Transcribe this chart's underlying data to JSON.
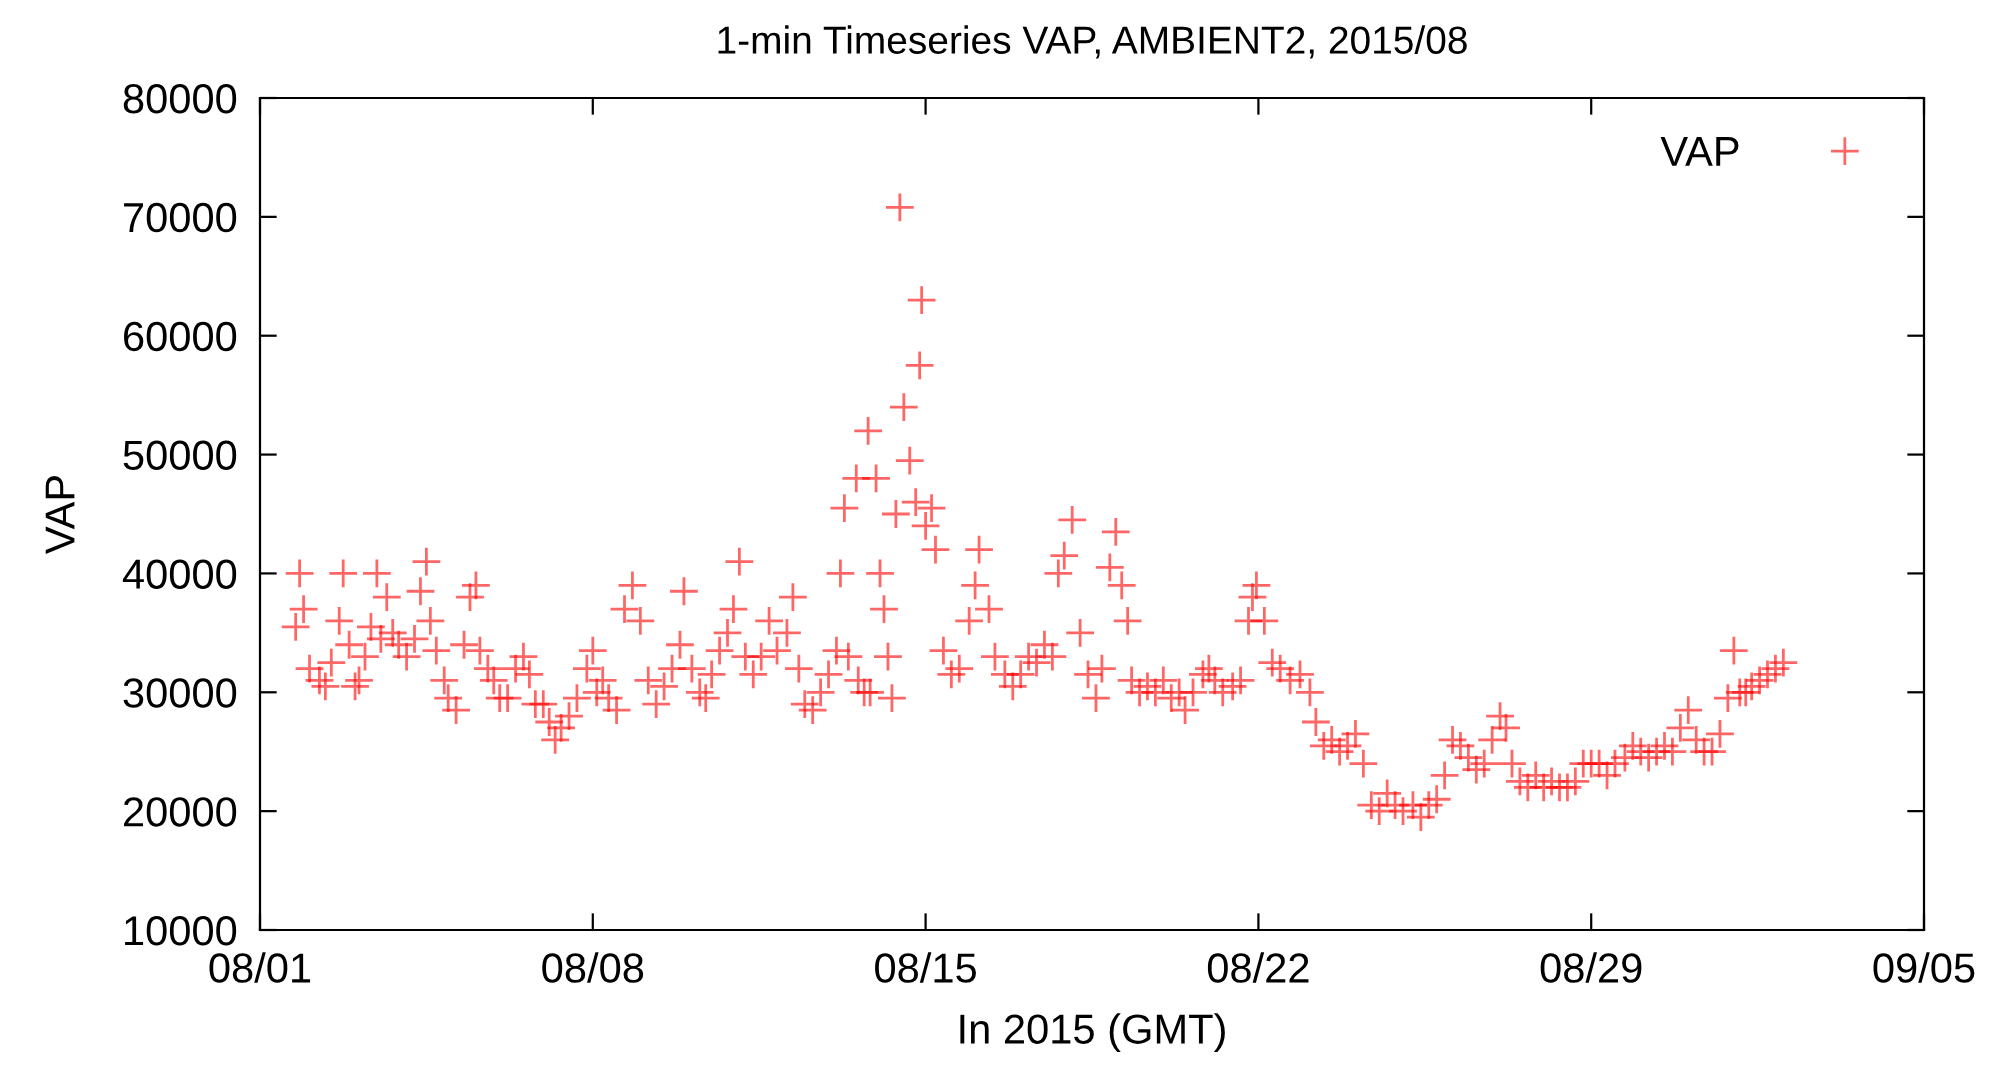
{
  "chart_data": {
    "type": "scatter",
    "title": "1-min Timeseries VAP, AMBIENT2, 2015/08",
    "xlabel": "In 2015 (GMT)",
    "ylabel": "VAP",
    "xlim": [
      "2015-08-01",
      "2015-09-05"
    ],
    "xticks": [
      {
        "value": "2015-08-01",
        "label": "08/01"
      },
      {
        "value": "2015-08-08",
        "label": "08/08"
      },
      {
        "value": "2015-08-15",
        "label": "08/15"
      },
      {
        "value": "2015-08-22",
        "label": "08/22"
      },
      {
        "value": "2015-08-29",
        "label": "08/29"
      },
      {
        "value": "2015-09-05",
        "label": "09/05"
      }
    ],
    "ylim": [
      10000,
      80000
    ],
    "yticks": [
      10000,
      20000,
      30000,
      40000,
      50000,
      60000,
      70000,
      80000
    ],
    "grid": false,
    "legend": "top right",
    "marker": "cross",
    "x": [
      "2015-08-01T18:00",
      "2015-08-01T20:00",
      "2015-08-01T22:00",
      "2015-08-02T01:00",
      "2015-08-02T06:00",
      "2015-08-02T09:00",
      "2015-08-02T12:00",
      "2015-08-02T16:00",
      "2015-08-02T18:00",
      "2015-08-02T21:00",
      "2015-08-03T00:00",
      "2015-08-03T02:00",
      "2015-08-03T05:00",
      "2015-08-03T08:00",
      "2015-08-03T11:00",
      "2015-08-03T13:00",
      "2015-08-03T16:00",
      "2015-08-03T19:00",
      "2015-08-03T22:00",
      "2015-08-04T02:00",
      "2015-08-04T06:00",
      "2015-08-04T09:00",
      "2015-08-04T12:00",
      "2015-08-04T14:00",
      "2015-08-04T17:00",
      "2015-08-04T21:00",
      "2015-08-04T23:00",
      "2015-08-05T03:00",
      "2015-08-05T07:00",
      "2015-08-05T10:00",
      "2015-08-05T13:00",
      "2015-08-05T15:00",
      "2015-08-05T19:00",
      "2015-08-05T22:00",
      "2015-08-06T01:00",
      "2015-08-06T05:00",
      "2015-08-06T09:00",
      "2015-08-06T13:00",
      "2015-08-06T16:00",
      "2015-08-06T19:00",
      "2015-08-06T23:00",
      "2015-08-07T02:00",
      "2015-08-07T05:00",
      "2015-08-07T08:00",
      "2015-08-07T12:00",
      "2015-08-07T16:00",
      "2015-08-07T21:00",
      "2015-08-08T00:00",
      "2015-08-08T02:00",
      "2015-08-08T05:00",
      "2015-08-08T08:00",
      "2015-08-08T12:00",
      "2015-08-08T16:00",
      "2015-08-08T20:00",
      "2015-08-09T00:00",
      "2015-08-09T04:00",
      "2015-08-09T08:00",
      "2015-08-09T12:00",
      "2015-08-09T16:00",
      "2015-08-09T20:00",
      "2015-08-09T22:00",
      "2015-08-10T02:00",
      "2015-08-10T06:00",
      "2015-08-10T09:00",
      "2015-08-10T12:00",
      "2015-08-10T16:00",
      "2015-08-10T20:00",
      "2015-08-10T23:00",
      "2015-08-11T02:00",
      "2015-08-11T05:00",
      "2015-08-11T09:00",
      "2015-08-11T13:00",
      "2015-08-11T17:00",
      "2015-08-11T21:00",
      "2015-08-12T02:00",
      "2015-08-12T05:00",
      "2015-08-12T08:00",
      "2015-08-12T11:00",
      "2015-08-12T15:00",
      "2015-08-12T19:00",
      "2015-08-12T23:00",
      "2015-08-13T03:00",
      "2015-08-13T05:00",
      "2015-08-13T07:00",
      "2015-08-13T09:00",
      "2015-08-13T13:00",
      "2015-08-13T14:00",
      "2015-08-13T17:00",
      "2015-08-13T19:00",
      "2015-08-13T20:00",
      "2015-08-13T23:00",
      "2015-08-14T01:00",
      "2015-08-14T03:00",
      "2015-08-14T05:00",
      "2015-08-14T07:00",
      "2015-08-14T09:00",
      "2015-08-14T11:00",
      "2015-08-14T13:00",
      "2015-08-14T16:00",
      "2015-08-14T19:00",
      "2015-08-14T21:00",
      "2015-08-14T22:00",
      "2015-08-15T00:00",
      "2015-08-15T03:00",
      "2015-08-15T05:00",
      "2015-08-15T09:00",
      "2015-08-15T13:00",
      "2015-08-15T17:00",
      "2015-08-15T22:00",
      "2015-08-16T01:00",
      "2015-08-16T03:00",
      "2015-08-16T08:00",
      "2015-08-16T11:00",
      "2015-08-16T16:00",
      "2015-08-16T20:00",
      "2015-08-17T00:00",
      "2015-08-17T04:00",
      "2015-08-17T08:00",
      "2015-08-17T12:00",
      "2015-08-17T16:00",
      "2015-08-17T19:00",
      "2015-08-17T22:00",
      "2015-08-18T02:00",
      "2015-08-18T06:00",
      "2015-08-18T10:00",
      "2015-08-18T14:00",
      "2015-08-18T17:00",
      "2015-08-18T21:00",
      "2015-08-19T00:00",
      "2015-08-19T03:00",
      "2015-08-19T06:00",
      "2015-08-19T08:00",
      "2015-08-19T12:00",
      "2015-08-19T16:00",
      "2015-08-19T20:00",
      "2015-08-20T00:00",
      "2015-08-20T04:00",
      "2015-08-20T08:00",
      "2015-08-20T11:00",
      "2015-08-20T15:00",
      "2015-08-20T20:00",
      "2015-08-20T23:00",
      "2015-08-21T02:00",
      "2015-08-21T06:00",
      "2015-08-21T11:00",
      "2015-08-21T15:00",
      "2015-08-21T19:00",
      "2015-08-21T21:00",
      "2015-08-21T23:00",
      "2015-08-22T03:00",
      "2015-08-22T07:00",
      "2015-08-22T11:00",
      "2015-08-22T16:00",
      "2015-08-22T21:00",
      "2015-08-23T02:00",
      "2015-08-23T05:00",
      "2015-08-23T09:00",
      "2015-08-23T13:00",
      "2015-08-23T17:00",
      "2015-08-23T21:00",
      "2015-08-24T01:00",
      "2015-08-24T05:00",
      "2015-08-24T09:00",
      "2015-08-24T13:00",
      "2015-08-24T17:00",
      "2015-08-24T21:00",
      "2015-08-25T01:00",
      "2015-08-25T06:00",
      "2015-08-25T10:00",
      "2015-08-25T14:00",
      "2015-08-25T18:00",
      "2015-08-25T22:00",
      "2015-08-26T02:00",
      "2015-08-26T06:00",
      "2015-08-26T10:00",
      "2015-08-26T14:00",
      "2015-08-26T18:00",
      "2015-08-26T22:00",
      "2015-08-27T02:00",
      "2015-08-27T05:00",
      "2015-08-27T08:00",
      "2015-08-27T12:00",
      "2015-08-27T16:00",
      "2015-08-27T20:00",
      "2015-08-28T00:00",
      "2015-08-28T04:00",
      "2015-08-28T08:00",
      "2015-08-28T12:00",
      "2015-08-28T16:00",
      "2015-08-28T20:00",
      "2015-08-29T00:00",
      "2015-08-29T04:00",
      "2015-08-29T08:00",
      "2015-08-29T12:00",
      "2015-08-29T17:00",
      "2015-08-29T21:00",
      "2015-08-30T01:00",
      "2015-08-30T05:00",
      "2015-08-30T09:00",
      "2015-08-30T13:00",
      "2015-08-30T17:00",
      "2015-08-30T21:00",
      "2015-08-31T01:00",
      "2015-08-31T05:00",
      "2015-08-31T09:00",
      "2015-08-31T13:00",
      "2015-08-31T17:00",
      "2015-08-31T21:00",
      "2015-09-01T00:00",
      "2015-09-01T03:00",
      "2015-09-01T06:00",
      "2015-09-01T09:00",
      "2015-09-01T13:00",
      "2015-09-01T17:00",
      "2015-09-01T21:00",
      "2015-09-02T01:00"
    ],
    "series": [
      {
        "name": "VAP",
        "color": "#ff0000",
        "values": [
          35500,
          40000,
          37000,
          32000,
          31000,
          30500,
          32500,
          36000,
          40000,
          34000,
          30500,
          31000,
          33000,
          35500,
          40000,
          34500,
          38000,
          35000,
          34000,
          33000,
          34500,
          38500,
          41000,
          36000,
          33500,
          31000,
          29500,
          28500,
          34000,
          38000,
          39000,
          33500,
          32000,
          31000,
          29500,
          29500,
          32000,
          33000,
          31500,
          29000,
          29000,
          27500,
          26000,
          27000,
          28000,
          29500,
          32000,
          33500,
          30000,
          31000,
          29500,
          28500,
          37000,
          39000,
          36000,
          31000,
          29000,
          30500,
          32000,
          34000,
          38500,
          32000,
          30000,
          29500,
          31500,
          33500,
          35000,
          37000,
          41000,
          33000,
          31500,
          33000,
          36000,
          33500,
          35000,
          38000,
          32000,
          29000,
          28500,
          30000,
          31500,
          33500,
          40000,
          45500,
          33000,
          48000,
          31000,
          30000,
          52000,
          30000,
          48000,
          40000,
          37000,
          33000,
          29500,
          45000,
          70800,
          54000,
          49500,
          46000,
          57500,
          63000,
          44000,
          45500,
          42000,
          33500,
          31500,
          32000,
          36000,
          39000,
          42000,
          37000,
          33000,
          31500,
          30500,
          31500,
          33000,
          32500,
          34000,
          33000,
          40000,
          41500,
          44500,
          35000,
          31500,
          29500,
          32000,
          40500,
          43500,
          39000,
          36000,
          31000,
          30000,
          30500,
          30000,
          31000,
          29500,
          30000,
          28500,
          30000,
          31500,
          32000,
          31000,
          30000,
          30500,
          31000,
          36000,
          38000,
          39000,
          36000,
          32500,
          32000,
          31000,
          31500,
          30000,
          27500,
          25500,
          26000,
          25000,
          25500,
          26500,
          24000,
          20500,
          20000,
          21500,
          20500,
          20000,
          20500,
          19500,
          20500,
          21000,
          23000,
          26000,
          25500,
          24500,
          23500,
          24000,
          26000,
          28000,
          27000,
          24000,
          22500,
          22000,
          23000,
          22000,
          22500,
          22000,
          22000,
          22500,
          24000,
          24000,
          24000,
          23000,
          24000,
          24500,
          25500,
          25000,
          24500,
          25000,
          25500,
          25000,
          27000,
          28500,
          26000,
          25000,
          25000,
          26500,
          29500,
          33500,
          30000,
          30000,
          30500,
          31000,
          31500,
          32000,
          32500
        ]
      }
    ]
  }
}
